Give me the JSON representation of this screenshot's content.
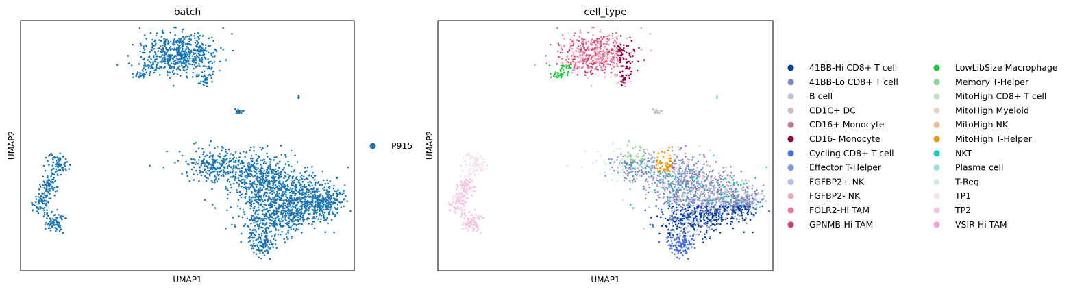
{
  "chart_data": [
    {
      "type": "scatter",
      "title": "batch",
      "xlabel": "UMAP1",
      "ylabel": "UMAP2",
      "grid": false,
      "ticks": false,
      "legend_placement": "right",
      "color_key": "batch",
      "series": [
        {
          "name": "P915",
          "color": "#1f77b4"
        }
      ]
    },
    {
      "type": "scatter",
      "title": "cell_type",
      "xlabel": "UMAP1",
      "ylabel": "UMAP2",
      "grid": false,
      "ticks": false,
      "legend_placement": "right",
      "legend_columns": 2,
      "color_key": "cell_type",
      "series": [
        {
          "name": "41BB-Hi CD8+ T cell",
          "color": "#023fa5"
        },
        {
          "name": "41BB-Lo CD8+ T cell",
          "color": "#7d87b9"
        },
        {
          "name": "B cell",
          "color": "#bec1d4"
        },
        {
          "name": "CD1C+ DC",
          "color": "#d6bcc0"
        },
        {
          "name": "CD16+ Monocyte",
          "color": "#bb7784"
        },
        {
          "name": "CD16- Monocyte",
          "color": "#8e063b"
        },
        {
          "name": "Cycling CD8+ T cell",
          "color": "#4a6fe3"
        },
        {
          "name": "Effector T-Helper",
          "color": "#8595e1"
        },
        {
          "name": "FGFBP2+ NK",
          "color": "#b5bbe3"
        },
        {
          "name": "FGFBP2- NK",
          "color": "#e6afb9"
        },
        {
          "name": "FOLR2-Hi TAM",
          "color": "#e07b91"
        },
        {
          "name": "GPNMB-Hi TAM",
          "color": "#d33f6a"
        },
        {
          "name": "LowLibSize Macrophage",
          "color": "#11c638"
        },
        {
          "name": "Memory T-Helper",
          "color": "#8dd593"
        },
        {
          "name": "MitoHigh CD8+ T cell",
          "color": "#c6dec7"
        },
        {
          "name": "MitoHigh Myeloid",
          "color": "#ead3c6"
        },
        {
          "name": "MitoHigh NK",
          "color": "#f0b98d"
        },
        {
          "name": "MitoHigh T-Helper",
          "color": "#ef9708"
        },
        {
          "name": "NKT",
          "color": "#0fcfc0"
        },
        {
          "name": "Plasma cell",
          "color": "#9cded6"
        },
        {
          "name": "T-Reg",
          "color": "#d5eae7"
        },
        {
          "name": "TP1",
          "color": "#f3e1eb"
        },
        {
          "name": "TP2",
          "color": "#f6c4e1"
        },
        {
          "name": "VSIR-Hi TAM",
          "color": "#f79cd4"
        }
      ]
    }
  ]
}
